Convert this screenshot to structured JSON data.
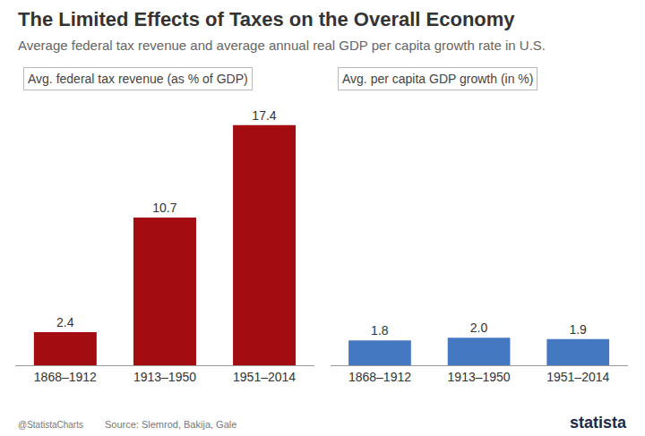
{
  "title": "The Limited Effects of Taxes on the Overall Economy",
  "subtitle": "Average federal tax revenue and average annual real GDP per capita growth rate in U.S.",
  "credit": "@StatistaCharts",
  "source": "Source: Slemrod, Bakija, Gale",
  "brand": "statista",
  "chart_data": [
    {
      "type": "bar",
      "title": "Avg. federal tax revenue (as % of GDP)",
      "categories": [
        "1868–1912",
        "1913–1950",
        "1951–2014"
      ],
      "values": [
        2.4,
        10.7,
        17.4
      ],
      "value_labels": [
        "2.4",
        "10.7",
        "17.4"
      ],
      "color": "#a30d12",
      "ylim": [
        0,
        19
      ],
      "data_labels": true,
      "tick_labels": "x",
      "grid": false
    },
    {
      "type": "bar",
      "title": "Avg. per capita GDP growth (in %)",
      "categories": [
        "1868–1912",
        "1913–1950",
        "1951–2014"
      ],
      "values": [
        1.8,
        2.0,
        1.9
      ],
      "value_labels": [
        "1.8",
        "2.0",
        "1.9"
      ],
      "color": "#4479c1",
      "ylim": [
        0,
        19
      ],
      "data_labels": true,
      "tick_labels": "x",
      "grid": false
    }
  ]
}
